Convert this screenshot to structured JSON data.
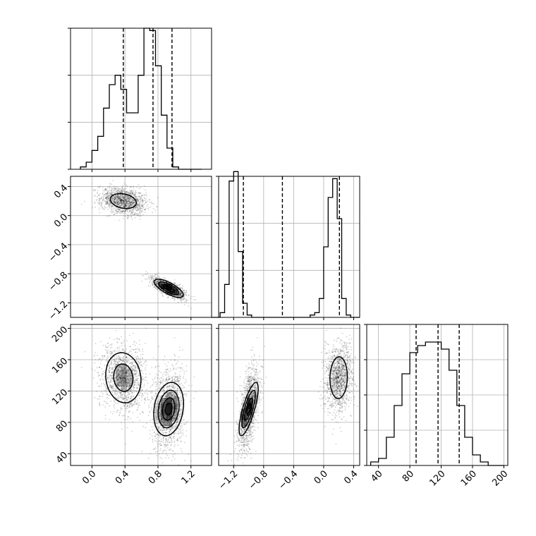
{
  "chart_data": {
    "type": "corner",
    "parameters": [
      "",
      "",
      ""
    ],
    "colors": {
      "line": "#000000",
      "grid": "#b0b0b0",
      "density": "#000000"
    },
    "grid": true,
    "histograms": [
      {
        "param": 0,
        "bin_edges": [
          -0.14,
          -0.07,
          0.0,
          0.07,
          0.14,
          0.21,
          0.28,
          0.35,
          0.42,
          0.49,
          0.56,
          0.63,
          0.7,
          0.77,
          0.84,
          0.91,
          0.98,
          1.05,
          1.12,
          1.19,
          1.26,
          1.33
        ],
        "counts": [
          1,
          3,
          8,
          14,
          26,
          36,
          40,
          34,
          24,
          24,
          40,
          60,
          59,
          44,
          23,
          9,
          1,
          0,
          0,
          0,
          0
        ],
        "quantiles": [
          0.38,
          0.74,
          0.97
        ],
        "xlim": [
          -0.26,
          1.45
        ],
        "ylim": [
          0,
          60
        ],
        "yticks": [
          0,
          20,
          40,
          60
        ]
      },
      {
        "param": 1,
        "bin_edges": [
          -1.5,
          -1.44,
          -1.38,
          -1.32,
          -1.26,
          -1.2,
          -1.14,
          -1.08,
          -1.02,
          -0.96,
          -0.9,
          -0.84,
          -0.78,
          -0.72,
          -0.66,
          -0.6,
          -0.54,
          -0.48,
          -0.42,
          -0.36,
          -0.3,
          -0.24,
          -0.18,
          -0.12,
          -0.06,
          0.0,
          0.06,
          0.12,
          0.18,
          0.24,
          0.3,
          0.36,
          0.42,
          0.48
        ],
        "counts": [
          0,
          0,
          2,
          14,
          58,
          62,
          28,
          6,
          1,
          0,
          0,
          0,
          0,
          0,
          0,
          0,
          0,
          0,
          0,
          0,
          0,
          0,
          1,
          2,
          8,
          30,
          51,
          59,
          42,
          8,
          1,
          0,
          0
        ],
        "quantiles": [
          -1.07,
          -0.55,
          0.21
        ],
        "xlim": [
          -1.4,
          0.48
        ],
        "ylim": [
          0,
          60
        ],
        "yticks": [
          0,
          20,
          40,
          60
        ]
      },
      {
        "param": 2,
        "bin_edges": [
          30,
          40,
          50,
          60,
          70,
          80,
          90,
          100,
          110,
          120,
          130,
          140,
          150,
          160,
          170,
          180,
          190,
          200
        ],
        "counts": [
          1,
          2,
          8,
          17,
          26,
          32,
          34,
          35,
          35,
          33,
          27,
          17,
          8,
          3,
          1,
          0,
          0
        ],
        "quantiles": [
          88,
          116,
          143
        ],
        "xlim": [
          25,
          205
        ],
        "ylim": [
          0,
          40
        ],
        "yticks": [
          0,
          10,
          20,
          30,
          40
        ]
      }
    ],
    "axes": {
      "x": {
        "0": {
          "lim": [
            -0.26,
            1.45
          ],
          "ticks": [
            0.0,
            0.4,
            0.8,
            1.2
          ],
          "tick_labels": [
            "0.0",
            "0.4",
            "0.8",
            "1.2"
          ]
        },
        "1": {
          "lim": [
            -1.4,
            0.48
          ],
          "ticks": [
            -1.2,
            -0.8,
            -0.4,
            0.0,
            0.4
          ],
          "tick_labels": [
            "−1.2",
            "−0.8",
            "−0.4",
            "0.0",
            "0.4"
          ]
        },
        "2": {
          "lim": [
            25,
            205
          ],
          "ticks": [
            40,
            80,
            120,
            160,
            200
          ],
          "tick_labels": [
            "40",
            "80",
            "120",
            "160",
            "200"
          ]
        }
      },
      "y": {
        "1": {
          "lim": [
            -1.4,
            0.54
          ],
          "ticks": [
            -1.2,
            -0.8,
            -0.4,
            0.0,
            0.4
          ],
          "tick_labels": [
            "−1.2",
            "−0.8",
            "−0.4",
            "0.0",
            "0.4"
          ]
        },
        "2": {
          "lim": [
            25,
            205
          ],
          "ticks": [
            40,
            80,
            120,
            160,
            200
          ],
          "tick_labels": [
            "40",
            "80",
            "120",
            "160",
            "200"
          ]
        }
      }
    },
    "modes": [
      {
        "x0": 0.38,
        "x1": 0.2,
        "x2": 137,
        "s0": 0.14,
        "s1": 0.09,
        "s2": 21,
        "r01": -0.25,
        "r02": -0.1,
        "r12": 0.05
      },
      {
        "x0": 0.93,
        "x1": -1.0,
        "x2": 97,
        "s0": 0.1,
        "s1": 0.07,
        "s2": 19,
        "r01": -0.75,
        "r02": 0.2,
        "r12": 0.78
      }
    ],
    "contour_levels": [
      0.2,
      0.45,
      0.75,
      0.92
    ]
  }
}
